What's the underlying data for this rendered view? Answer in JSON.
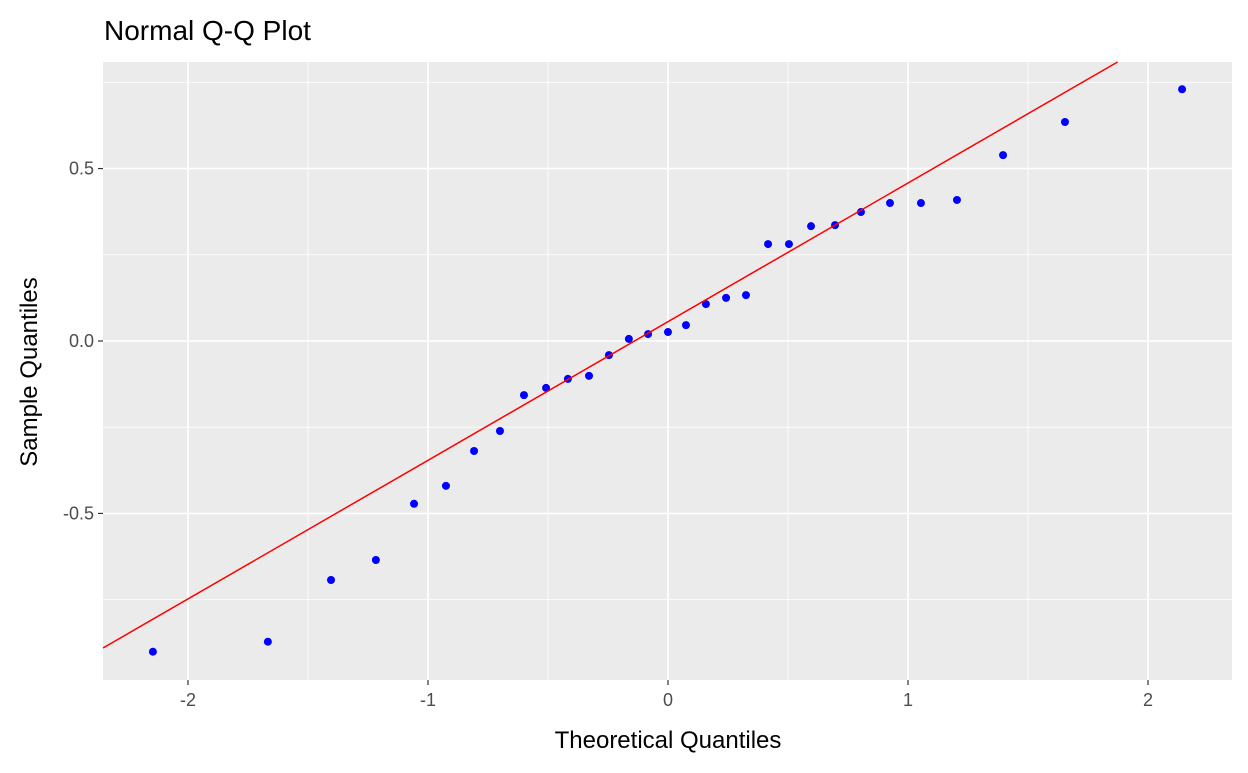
{
  "chart_data": {
    "type": "scatter",
    "title": "Normal Q-Q Plot",
    "xlabel": "Theoretical Quantiles",
    "ylabel": "Sample Quantiles",
    "xlim": [
      -2.354,
      2.35
    ],
    "ylim": [
      -0.983,
      0.809
    ],
    "grid": true,
    "x_ticks": [
      -2,
      -1,
      0,
      1,
      2
    ],
    "x_tick_labels": [
      "-2",
      "-1",
      "0",
      "1",
      "2"
    ],
    "x_minor": [
      -1.5,
      -0.5,
      0.5,
      1.5
    ],
    "y_ticks": [
      -0.5,
      0,
      0.5
    ],
    "y_tick_labels": [
      "-0.5",
      "0.0",
      "0.5"
    ],
    "y_minor": [
      -0.75,
      -0.25,
      0.25,
      0.75
    ],
    "points": {
      "x": [
        -2.146,
        -1.667,
        -1.404,
        -1.217,
        -1.058,
        -0.925,
        -0.808,
        -0.7,
        -0.6,
        -0.508,
        -0.417,
        -0.329,
        -0.246,
        -0.163,
        -0.083,
        0.0,
        0.075,
        0.158,
        0.242,
        0.325,
        0.417,
        0.504,
        0.596,
        0.696,
        0.804,
        0.925,
        1.054,
        1.204,
        1.396,
        1.654,
        2.142
      ],
      "y": [
        -0.901,
        -0.872,
        -0.693,
        -0.635,
        -0.472,
        -0.42,
        -0.319,
        -0.261,
        -0.157,
        -0.136,
        -0.11,
        -0.101,
        -0.041,
        0.006,
        0.02,
        0.026,
        0.046,
        0.107,
        0.125,
        0.133,
        0.281,
        0.281,
        0.333,
        0.336,
        0.374,
        0.4,
        0.4,
        0.409,
        0.539,
        0.635,
        0.73
      ],
      "color": "#0000FF"
    },
    "reference_line": {
      "intercept": 0.056,
      "slope": 0.402,
      "color": "#FF0000"
    },
    "panel_background": "#EBEBEB",
    "grid_color": "#FFFFFF"
  }
}
